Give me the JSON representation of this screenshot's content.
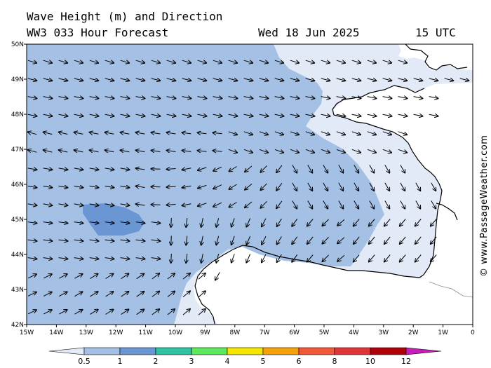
{
  "header": {
    "title": "Wave Height (m) and Direction",
    "model": "WW3 033 Hour Forecast",
    "date": "Wed 18 Jun 2025",
    "time": "15 UTC"
  },
  "copyright": "© www.PassageWeather.com",
  "axes": {
    "lat_labels": [
      "50N",
      "49N",
      "48N",
      "47N",
      "46N",
      "45N",
      "44N",
      "43N",
      "42N"
    ],
    "lon_labels": [
      "15W",
      "14W",
      "13W",
      "12W",
      "11W",
      "10W",
      "9W",
      "8W",
      "7W",
      "6W",
      "5W",
      "4W",
      "3W",
      "2W",
      "1W",
      "0"
    ]
  },
  "legend": {
    "ticks": [
      "0.5",
      "1",
      "2",
      "3",
      "4",
      "5",
      "6",
      "8",
      "10",
      "12"
    ],
    "colors": [
      "#e2e9f7",
      "#a4c0e4",
      "#6b96d4",
      "#2fc2a3",
      "#5ee85e",
      "#f4e600",
      "#f5a20a",
      "#f4583a",
      "#e0363a",
      "#b0000a",
      "#c51eb8"
    ]
  },
  "colors": {
    "land": "#ffffff",
    "sea_low": "#e2e9f7",
    "sea_mid": "#a4c0e4",
    "sea_high": "#6b96d4"
  }
}
